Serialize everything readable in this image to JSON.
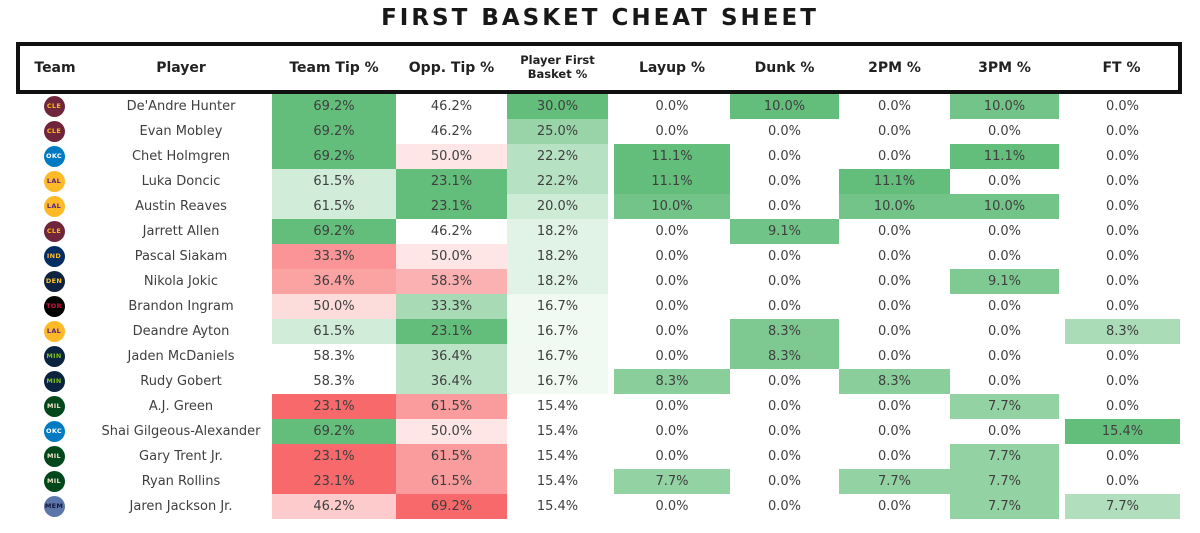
{
  "title": "FIRST BASKET CHEAT SHEET",
  "value_suffix": "%",
  "colors": {
    "scale_green": "#63be7b",
    "scale_red": "#f8696b",
    "scale_white": "#ffffff",
    "header_border": "#111111",
    "text": "#3f3f3f"
  },
  "teams": {
    "CLE": {
      "name": "Cleveland Cavaliers",
      "abbr": "CLE",
      "bg": "#6f263d",
      "fg": "#ffb81c"
    },
    "OKC": {
      "name": "Oklahoma City Thunder",
      "abbr": "OKC",
      "bg": "#007ac1",
      "fg": "#ffffff"
    },
    "LAL": {
      "name": "Los Angeles Lakers",
      "abbr": "LAL",
      "bg": "#fdb927",
      "fg": "#552583"
    },
    "IND": {
      "name": "Indiana Pacers",
      "abbr": "IND",
      "bg": "#002d62",
      "fg": "#fdbb30"
    },
    "DEN": {
      "name": "Denver Nuggets",
      "abbr": "DEN",
      "bg": "#0e2240",
      "fg": "#fec524"
    },
    "TOR": {
      "name": "Toronto Raptors",
      "abbr": "TOR",
      "bg": "#000000",
      "fg": "#ce1141"
    },
    "MIN": {
      "name": "Minnesota Timberwolves",
      "abbr": "MIN",
      "bg": "#0c2340",
      "fg": "#78be20"
    },
    "MIL": {
      "name": "Milwaukee Bucks",
      "abbr": "MIL",
      "bg": "#00471b",
      "fg": "#eee1c6"
    },
    "MEM": {
      "name": "Memphis Grizzlies",
      "abbr": "MEM",
      "bg": "#5d76a9",
      "fg": "#12173f"
    }
  },
  "chart_data": {
    "type": "table",
    "title": "FIRST BASKET CHEAT SHEET",
    "columns": [
      {
        "key": "team",
        "label": "Team"
      },
      {
        "key": "player",
        "label": "Player"
      },
      {
        "key": "team_tip",
        "label": "Team Tip %"
      },
      {
        "key": "opp_tip",
        "label": "Opp. Tip %"
      },
      {
        "key": "player_first_basket",
        "label": "Player First Basket %"
      },
      {
        "key": "layup",
        "label": "Layup %"
      },
      {
        "key": "dunk",
        "label": "Dunk %"
      },
      {
        "key": "pm2",
        "label": "2PM %"
      },
      {
        "key": "pm3",
        "label": "3PM %"
      },
      {
        "key": "ft",
        "label": "FT %"
      }
    ],
    "rows": [
      {
        "team": "CLE",
        "player": "De'Andre Hunter",
        "team_tip": 69.2,
        "opp_tip": 46.2,
        "player_first_basket": 30.0,
        "layup": 0.0,
        "dunk": 10.0,
        "pm2": 0.0,
        "pm3": 10.0,
        "ft": 0.0
      },
      {
        "team": "CLE",
        "player": "Evan Mobley",
        "team_tip": 69.2,
        "opp_tip": 46.2,
        "player_first_basket": 25.0,
        "layup": 0.0,
        "dunk": 0.0,
        "pm2": 0.0,
        "pm3": 0.0,
        "ft": 0.0
      },
      {
        "team": "OKC",
        "player": "Chet Holmgren",
        "team_tip": 69.2,
        "opp_tip": 50.0,
        "player_first_basket": 22.2,
        "layup": 11.1,
        "dunk": 0.0,
        "pm2": 0.0,
        "pm3": 11.1,
        "ft": 0.0
      },
      {
        "team": "LAL",
        "player": "Luka Doncic",
        "team_tip": 61.5,
        "opp_tip": 23.1,
        "player_first_basket": 22.2,
        "layup": 11.1,
        "dunk": 0.0,
        "pm2": 11.1,
        "pm3": 0.0,
        "ft": 0.0
      },
      {
        "team": "LAL",
        "player": "Austin Reaves",
        "team_tip": 61.5,
        "opp_tip": 23.1,
        "player_first_basket": 20.0,
        "layup": 10.0,
        "dunk": 0.0,
        "pm2": 10.0,
        "pm3": 10.0,
        "ft": 0.0
      },
      {
        "team": "CLE",
        "player": "Jarrett Allen",
        "team_tip": 69.2,
        "opp_tip": 46.2,
        "player_first_basket": 18.2,
        "layup": 0.0,
        "dunk": 9.1,
        "pm2": 0.0,
        "pm3": 0.0,
        "ft": 0.0
      },
      {
        "team": "IND",
        "player": "Pascal Siakam",
        "team_tip": 33.3,
        "opp_tip": 50.0,
        "player_first_basket": 18.2,
        "layup": 0.0,
        "dunk": 0.0,
        "pm2": 0.0,
        "pm3": 0.0,
        "ft": 0.0
      },
      {
        "team": "DEN",
        "player": "Nikola Jokic",
        "team_tip": 36.4,
        "opp_tip": 58.3,
        "player_first_basket": 18.2,
        "layup": 0.0,
        "dunk": 0.0,
        "pm2": 0.0,
        "pm3": 9.1,
        "ft": 0.0
      },
      {
        "team": "TOR",
        "player": "Brandon Ingram",
        "team_tip": 50.0,
        "opp_tip": 33.3,
        "player_first_basket": 16.7,
        "layup": 0.0,
        "dunk": 0.0,
        "pm2": 0.0,
        "pm3": 0.0,
        "ft": 0.0
      },
      {
        "team": "LAL",
        "player": "Deandre Ayton",
        "team_tip": 61.5,
        "opp_tip": 23.1,
        "player_first_basket": 16.7,
        "layup": 0.0,
        "dunk": 8.3,
        "pm2": 0.0,
        "pm3": 0.0,
        "ft": 8.3
      },
      {
        "team": "MIN",
        "player": "Jaden McDaniels",
        "team_tip": 58.3,
        "opp_tip": 36.4,
        "player_first_basket": 16.7,
        "layup": 0.0,
        "dunk": 8.3,
        "pm2": 0.0,
        "pm3": 0.0,
        "ft": 0.0
      },
      {
        "team": "MIN",
        "player": "Rudy Gobert",
        "team_tip": 58.3,
        "opp_tip": 36.4,
        "player_first_basket": 16.7,
        "layup": 8.3,
        "dunk": 0.0,
        "pm2": 8.3,
        "pm3": 0.0,
        "ft": 0.0
      },
      {
        "team": "MIL",
        "player": "A.J. Green",
        "team_tip": 23.1,
        "opp_tip": 61.5,
        "player_first_basket": 15.4,
        "layup": 0.0,
        "dunk": 0.0,
        "pm2": 0.0,
        "pm3": 7.7,
        "ft": 0.0
      },
      {
        "team": "OKC",
        "player": "Shai Gilgeous-Alexander",
        "team_tip": 69.2,
        "opp_tip": 50.0,
        "player_first_basket": 15.4,
        "layup": 0.0,
        "dunk": 0.0,
        "pm2": 0.0,
        "pm3": 0.0,
        "ft": 15.4
      },
      {
        "team": "MIL",
        "player": "Gary Trent Jr.",
        "team_tip": 23.1,
        "opp_tip": 61.5,
        "player_first_basket": 15.4,
        "layup": 0.0,
        "dunk": 0.0,
        "pm2": 0.0,
        "pm3": 7.7,
        "ft": 0.0
      },
      {
        "team": "MIL",
        "player": "Ryan Rollins",
        "team_tip": 23.1,
        "opp_tip": 61.5,
        "player_first_basket": 15.4,
        "layup": 7.7,
        "dunk": 0.0,
        "pm2": 7.7,
        "pm3": 7.7,
        "ft": 0.0
      },
      {
        "team": "MEM",
        "player": "Jaren Jackson Jr.",
        "team_tip": 46.2,
        "opp_tip": 69.2,
        "player_first_basket": 15.4,
        "layup": 0.0,
        "dunk": 0.0,
        "pm2": 0.0,
        "pm3": 7.7,
        "ft": 7.7
      }
    ]
  },
  "conditional_format_scales": {
    "team_tip": {
      "kind": "diverging",
      "min": 23.1,
      "mid": 58.3,
      "max": 69.2,
      "low_color": "scale_red",
      "high_color": "scale_green"
    },
    "opp_tip": {
      "kind": "diverging",
      "min": 23.1,
      "mid": 46.2,
      "max": 69.2,
      "low_color": "scale_green",
      "high_color": "scale_red"
    },
    "player_first_basket": {
      "kind": "linear",
      "min": 15.4,
      "max": 30.0,
      "color": "scale_green"
    },
    "layup": {
      "kind": "linear",
      "min": 0.0,
      "max": 11.1,
      "color": "scale_green"
    },
    "dunk": {
      "kind": "linear",
      "min": 0.0,
      "max": 10.0,
      "color": "scale_green"
    },
    "pm2": {
      "kind": "linear",
      "min": 0.0,
      "max": 11.1,
      "color": "scale_green"
    },
    "pm3": {
      "kind": "linear",
      "min": 0.0,
      "max": 11.1,
      "color": "scale_green"
    },
    "ft": {
      "kind": "linear",
      "min": 0.0,
      "max": 15.4,
      "color": "scale_green"
    }
  }
}
